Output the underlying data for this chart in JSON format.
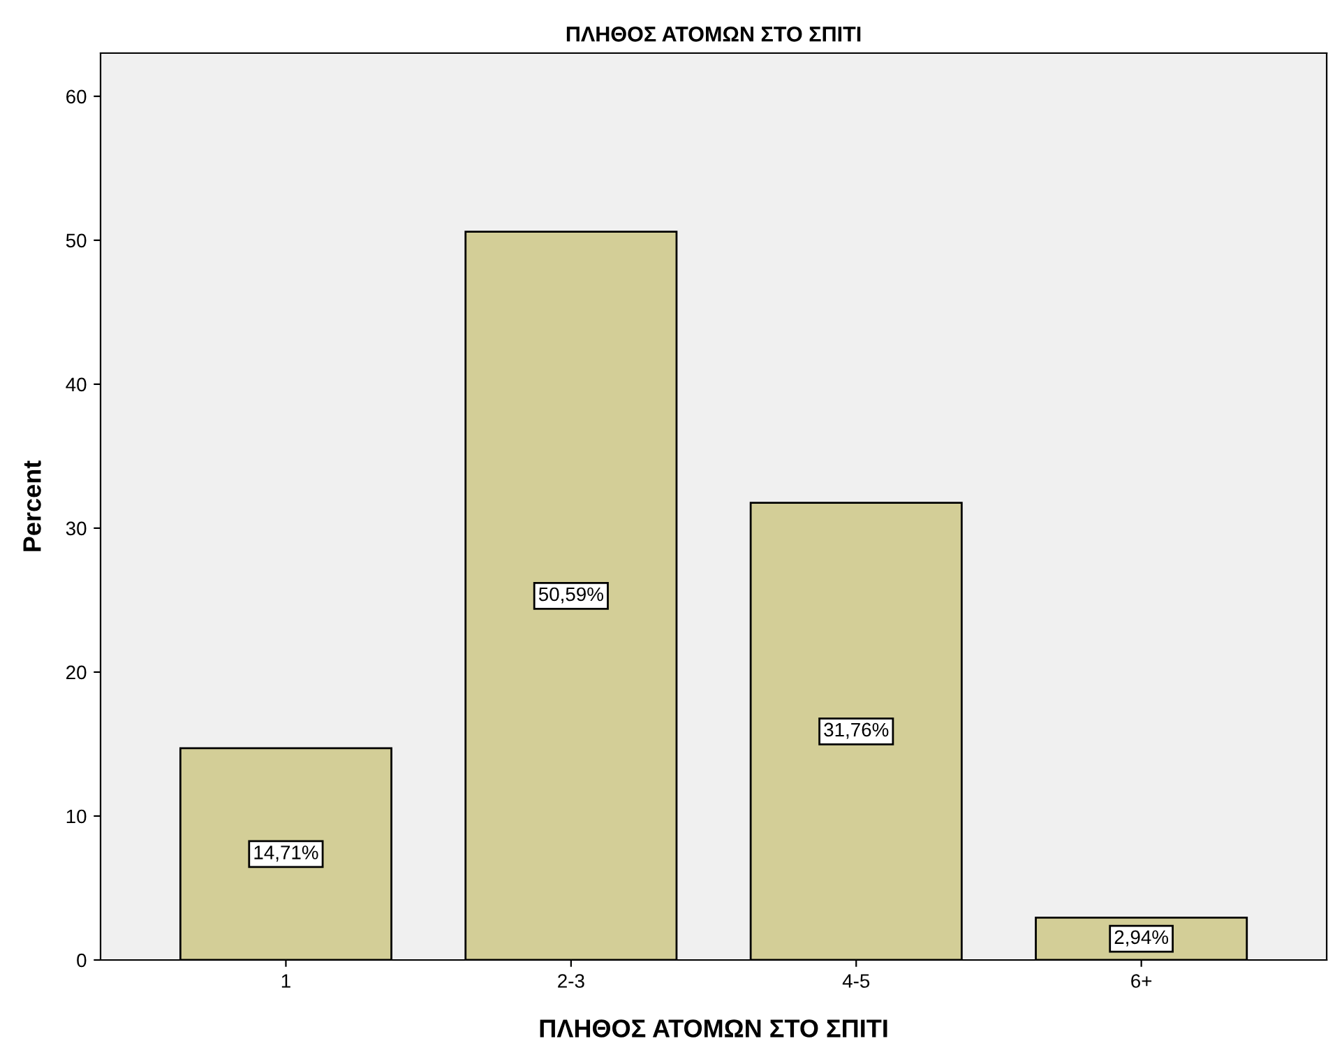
{
  "chart_data": {
    "type": "bar",
    "title": "ΠΛΗΘΟΣ ΑΤΟΜΩΝ ΣΤΟ ΣΠΙΤΙ",
    "xlabel": "ΠΛΗΘΟΣ ΑΤΟΜΩΝ ΣΤΟ ΣΠΙΤΙ",
    "ylabel": "Percent",
    "categories": [
      "1",
      "2-3",
      "4-5",
      "6+"
    ],
    "values": [
      14.71,
      50.59,
      31.76,
      2.94
    ],
    "value_labels": [
      "14,71%",
      "50,59%",
      "31,76%",
      "2,94%"
    ],
    "color": "#d3ce97",
    "ylim": [
      0,
      63
    ],
    "yticks": [
      0,
      10,
      20,
      30,
      40,
      50,
      60
    ],
    "grid": false,
    "legend": false
  }
}
